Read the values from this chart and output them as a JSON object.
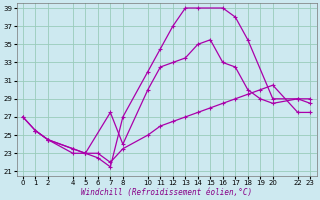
{
  "xlabel": "Windchill (Refroidissement éolien,°C)",
  "bg_color": "#cde9f0",
  "line_color": "#aa00aa",
  "grid_color": "#99ccbb",
  "xlim": [
    -0.5,
    23.5
  ],
  "ylim": [
    20.5,
    39.5
  ],
  "xticks": [
    0,
    1,
    2,
    4,
    5,
    6,
    7,
    8,
    10,
    11,
    12,
    13,
    14,
    15,
    16,
    17,
    18,
    19,
    20,
    22,
    23
  ],
  "yticks": [
    21,
    23,
    25,
    27,
    29,
    31,
    33,
    35,
    37,
    39
  ],
  "line1_x": [
    0,
    1,
    2,
    4,
    5,
    6,
    7,
    8,
    10,
    11,
    12,
    13,
    14,
    16,
    17,
    18,
    20,
    22,
    23
  ],
  "line1_y": [
    27,
    25.5,
    24.5,
    23,
    23,
    22.5,
    21.5,
    27,
    32,
    34.5,
    37,
    39,
    39,
    39,
    38,
    35.5,
    29,
    29,
    28.5
  ],
  "line2_x": [
    0,
    1,
    2,
    4,
    5,
    7,
    8,
    10,
    11,
    12,
    13,
    14,
    15,
    16,
    17,
    18,
    19,
    20,
    22,
    23
  ],
  "line2_y": [
    27,
    25.5,
    24.5,
    23.5,
    23,
    27.5,
    24,
    30,
    32.5,
    33,
    33.5,
    35,
    35.5,
    33,
    32.5,
    30,
    29,
    28.5,
    29,
    29
  ],
  "line3_x": [
    1,
    2,
    4,
    5,
    6,
    7,
    8,
    10,
    11,
    12,
    13,
    14,
    15,
    16,
    17,
    18,
    19,
    20,
    22,
    23
  ],
  "line3_y": [
    25.5,
    24.5,
    23.5,
    23,
    23,
    22,
    23.5,
    25,
    26,
    26.5,
    27,
    27.5,
    28,
    28.5,
    29,
    29.5,
    30,
    30.5,
    27.5,
    27.5
  ],
  "xlabel_color": "#880088",
  "xlabel_fontsize": 5.5,
  "tick_fontsize": 5,
  "linewidth": 0.9,
  "markersize": 3.5
}
